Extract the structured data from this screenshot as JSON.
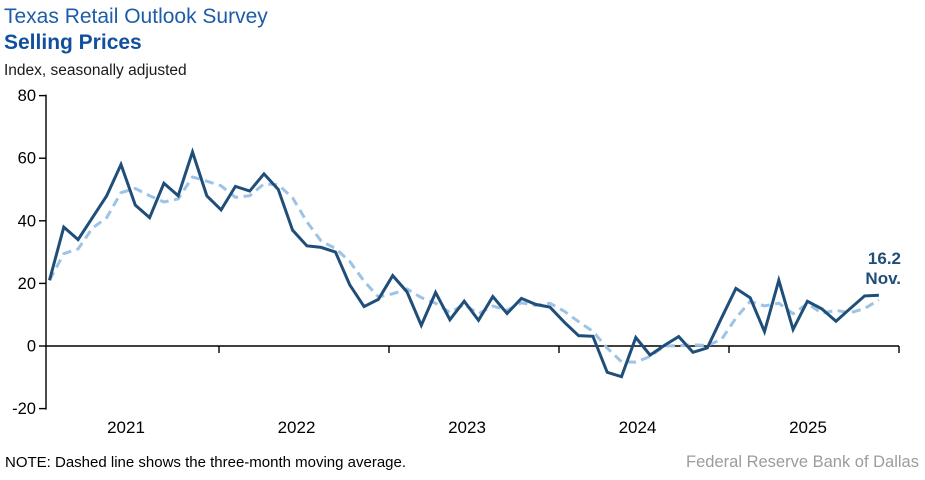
{
  "header": {
    "title": "Texas Retail Outlook Survey",
    "subtitle": "Selling Prices",
    "axis_note": "Index, seasonally adjusted"
  },
  "annotation": {
    "value": "16.2",
    "month": "Nov."
  },
  "footer": {
    "note": "NOTE: Dashed line shows the three-month moving average.",
    "source": "Federal Reserve Bank of Dallas"
  },
  "colors": {
    "title_blue": "#1d5ca8",
    "subtitle_blue": "#11509d",
    "line_solid": "#1f4e79",
    "line_dashed": "#9dc3e6",
    "axis_black": "#000000",
    "annotation_blue": "#1f4e79",
    "source_gray": "#9c9c9c"
  },
  "chart_data": {
    "type": "line",
    "title": "Texas Retail Outlook Survey — Selling Prices",
    "ylabel": "Index, seasonally adjusted",
    "ylim": [
      -20,
      80
    ],
    "yticks": [
      80,
      60,
      40,
      20,
      0,
      -20
    ],
    "grid": false,
    "legend_position": "none",
    "x_unit": "month",
    "start_month": "2021-01",
    "end_month": "2025-11",
    "year_labels": [
      "2021",
      "2022",
      "2023",
      "2024",
      "2025"
    ],
    "series": [
      {
        "name": "Selling prices index (monthly)",
        "style": "solid",
        "values": [
          21,
          38,
          34,
          41,
          48,
          58,
          45,
          41,
          52,
          48,
          62,
          48,
          43.5,
          51,
          49.5,
          55,
          50,
          37,
          32,
          31.5,
          30,
          19.5,
          12.6,
          14.9,
          22.5,
          17.3,
          6.6,
          17.1,
          8.4,
          14.3,
          8.2,
          15.8,
          10.4,
          15.2,
          13.3,
          12.4,
          7.6,
          3.3,
          3.1,
          -8.4,
          -9.8,
          2.7,
          -2.9,
          0.2,
          3.0,
          -2.0,
          -0.6,
          9.0,
          18.4,
          15.4,
          4.6,
          21.0,
          5.3,
          14.3,
          11.9,
          7.9,
          12.0,
          16.0,
          16.2
        ]
      },
      {
        "name": "Three-month moving average",
        "style": "dashed",
        "derived": "trailing 3-month moving average of the monthly series"
      }
    ],
    "last_point": {
      "value": 16.2,
      "label": "16.2",
      "month_label": "Nov."
    }
  }
}
